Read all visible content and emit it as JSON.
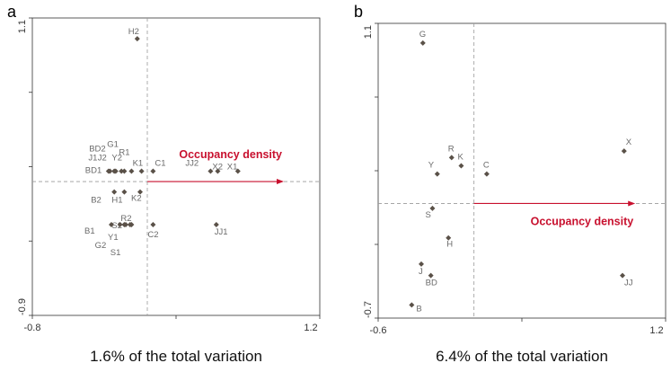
{
  "chart_data": [
    {
      "panel": "a",
      "type": "scatter",
      "title": "",
      "xlabel": "",
      "ylabel": "",
      "xlim": [
        -0.8,
        1.2
      ],
      "ylim": [
        -0.9,
        1.1
      ],
      "x_ticks": [
        "-0.8",
        "1.2"
      ],
      "y_ticks": [
        "1.1",
        "-0.9"
      ],
      "caption": "1.6% of the total variation",
      "vector": {
        "label": "Occupancy density",
        "x": 0.95,
        "y": 0.0
      },
      "points": [
        {
          "label": "H2",
          "x": -0.07,
          "y": 0.96
        },
        {
          "label": "BD2",
          "x": -0.23,
          "y": 0.07
        },
        {
          "label": "G1",
          "x": -0.18,
          "y": 0.07
        },
        {
          "label": "J1",
          "x": -0.26,
          "y": 0.07
        },
        {
          "label": "J2",
          "x": -0.22,
          "y": 0.07
        },
        {
          "label": "Y2",
          "x": -0.16,
          "y": 0.07
        },
        {
          "label": "R1",
          "x": -0.11,
          "y": 0.07
        },
        {
          "label": "K1",
          "x": -0.04,
          "y": 0.07
        },
        {
          "label": "C1",
          "x": 0.04,
          "y": 0.07
        },
        {
          "label": "BD1",
          "x": -0.27,
          "y": 0.07
        },
        {
          "label": "B2",
          "x": -0.23,
          "y": -0.07
        },
        {
          "label": "H1",
          "x": -0.16,
          "y": -0.07
        },
        {
          "label": "K2",
          "x": -0.05,
          "y": -0.07
        },
        {
          "label": "S2",
          "x": -0.16,
          "y": -0.29
        },
        {
          "label": "R2",
          "x": -0.11,
          "y": -0.29
        },
        {
          "label": "B1",
          "x": -0.25,
          "y": -0.29
        },
        {
          "label": "Y1",
          "x": -0.15,
          "y": -0.29
        },
        {
          "label": "C2",
          "x": 0.04,
          "y": -0.29
        },
        {
          "label": "G2",
          "x": -0.19,
          "y": -0.29
        },
        {
          "label": "S1",
          "x": -0.12,
          "y": -0.29
        },
        {
          "label": "JJ2",
          "x": 0.44,
          "y": 0.07
        },
        {
          "label": "X2",
          "x": 0.49,
          "y": 0.07
        },
        {
          "label": "X1",
          "x": 0.63,
          "y": 0.07
        },
        {
          "label": "JJ1",
          "x": 0.48,
          "y": -0.29
        }
      ]
    },
    {
      "panel": "b",
      "type": "scatter",
      "title": "",
      "xlabel": "",
      "ylabel": "",
      "xlim": [
        -0.6,
        1.2
      ],
      "ylim": [
        -0.7,
        1.1
      ],
      "x_ticks": [
        "-0.6",
        "1.2"
      ],
      "y_ticks": [
        "1.1",
        "-0.7"
      ],
      "caption": "6.4% of the total variation",
      "vector": {
        "label": "Occupancy density",
        "x": 1.01,
        "y": 0.0
      },
      "points": [
        {
          "label": "G",
          "x": -0.32,
          "y": 0.98
        },
        {
          "label": "R",
          "x": -0.14,
          "y": 0.28
        },
        {
          "label": "K",
          "x": -0.08,
          "y": 0.23
        },
        {
          "label": "X",
          "x": 0.94,
          "y": 0.32
        },
        {
          "label": "Y",
          "x": -0.23,
          "y": 0.18
        },
        {
          "label": "C",
          "x": 0.08,
          "y": 0.18
        },
        {
          "label": "S",
          "x": -0.26,
          "y": -0.03
        },
        {
          "label": "H",
          "x": -0.16,
          "y": -0.21
        },
        {
          "label": "J",
          "x": -0.33,
          "y": -0.37
        },
        {
          "label": "BD",
          "x": -0.27,
          "y": -0.44
        },
        {
          "label": "JJ",
          "x": 0.93,
          "y": -0.44
        },
        {
          "label": "B",
          "x": -0.39,
          "y": -0.62
        }
      ]
    }
  ]
}
